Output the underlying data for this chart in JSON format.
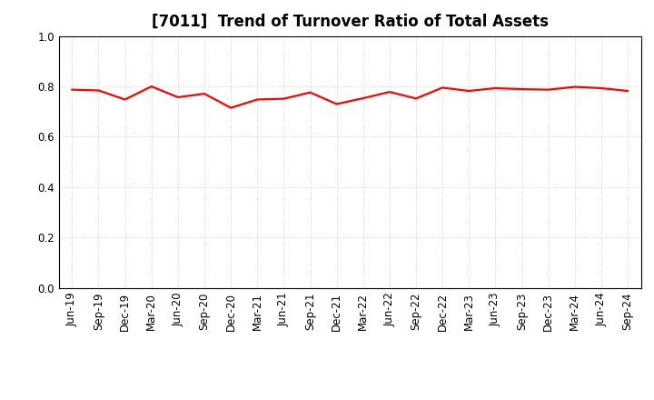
{
  "title": "[7011]  Trend of Turnover Ratio of Total Assets",
  "x_labels": [
    "Jun-19",
    "Sep-19",
    "Dec-19",
    "Mar-20",
    "Jun-20",
    "Sep-20",
    "Dec-20",
    "Mar-21",
    "Jun-21",
    "Sep-21",
    "Dec-21",
    "Mar-22",
    "Jun-22",
    "Sep-22",
    "Dec-22",
    "Mar-23",
    "Jun-23",
    "Sep-23",
    "Dec-23",
    "Mar-24",
    "Jun-24",
    "Sep-24"
  ],
  "y_values": [
    0.787,
    0.784,
    0.748,
    0.8,
    0.757,
    0.771,
    0.715,
    0.748,
    0.751,
    0.776,
    0.73,
    0.753,
    0.778,
    0.752,
    0.795,
    0.782,
    0.793,
    0.789,
    0.787,
    0.798,
    0.793,
    0.782
  ],
  "line_color": "#ff0000",
  "line_width": 1.6,
  "ylim": [
    0.0,
    1.0
  ],
  "yticks": [
    0.0,
    0.2,
    0.4,
    0.6,
    0.8,
    1.0
  ],
  "background_color": "#ffffff",
  "grid_color": "#bbbbbb",
  "title_fontsize": 12,
  "tick_fontsize": 8.5
}
